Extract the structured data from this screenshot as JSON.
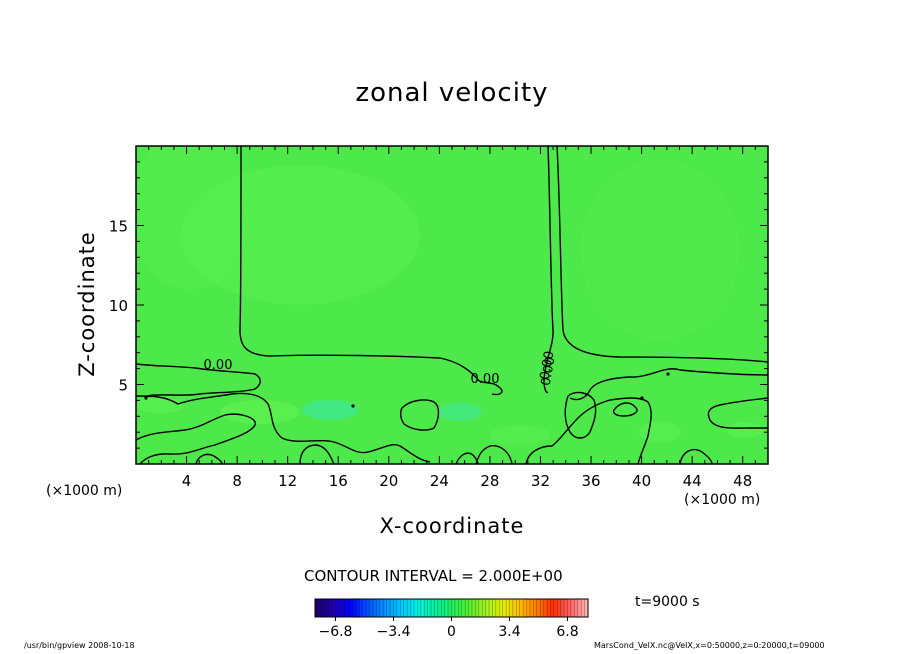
{
  "chart_data": {
    "type": "heatmap",
    "title": "zonal velocity",
    "xlabel": "X-coordinate",
    "ylabel": "Z-coordinate",
    "x_unit_left": "(×1000 m)",
    "x_unit_right": "(×1000 m)",
    "xlim": [
      0,
      50
    ],
    "ylim": [
      0,
      20
    ],
    "x_ticks": [
      4,
      8,
      12,
      16,
      20,
      24,
      28,
      32,
      36,
      40,
      44,
      48
    ],
    "x_tick_labels": [
      "4",
      "8",
      "12",
      "16",
      "20",
      "24",
      "28",
      "32",
      "36",
      "40",
      "44",
      "48"
    ],
    "y_ticks": [
      5,
      10,
      15
    ],
    "y_tick_labels": [
      "5",
      "10",
      "15"
    ],
    "contour_interval_text": "CONTOUR INTERVAL = 2.000E+00",
    "contour_labels": [
      "0.00",
      "0.00",
      "0.00",
      "0.00"
    ],
    "colorbar": {
      "range": [
        -8,
        8
      ],
      "tick_values": [
        -6.8,
        -3.4,
        0,
        3.4,
        6.8
      ],
      "tick_labels": [
        "−6.8",
        "−3.4",
        "0",
        "3.4",
        "6.8"
      ],
      "colors": [
        "#1a0070",
        "#2000b0",
        "#0000ff",
        "#0050ff",
        "#0090ff",
        "#00c8ff",
        "#00f0e0",
        "#00f0a0",
        "#20f060",
        "#50f030",
        "#a0f020",
        "#e0f000",
        "#ffc000",
        "#ff8000",
        "#ff3000",
        "#ff6060",
        "#ffb0b0"
      ]
    },
    "time_label": "t=9000 s",
    "colors": {
      "field": "#4de84a",
      "field_light": "#5af050",
      "field_cyan": "#40e890"
    }
  },
  "footer": {
    "left": "/usr/bin/gpview   2008-10-18",
    "right": "MarsCond_VelX.nc@VelX,x=0:50000,z=0:20000,t=09000"
  }
}
